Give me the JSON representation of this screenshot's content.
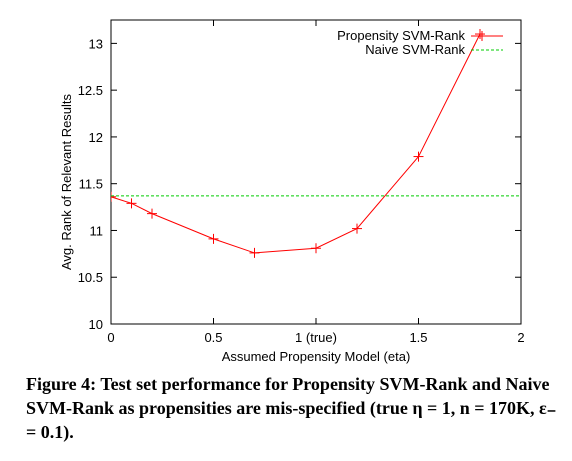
{
  "chart_data": {
    "type": "line",
    "xlabel": "Assumed Propensity Model (eta)",
    "ylabel": "Avg. Rank of Relevant Results",
    "xlim": [
      0,
      2
    ],
    "ylim": [
      10,
      13.25
    ],
    "x_ticks": [
      {
        "value": 0,
        "label": "0"
      },
      {
        "value": 0.5,
        "label": "0.5"
      },
      {
        "value": 1,
        "label": "1 (true)"
      },
      {
        "value": 1.5,
        "label": "1.5"
      },
      {
        "value": 2,
        "label": "2"
      }
    ],
    "y_ticks": [
      {
        "value": 10,
        "label": "10"
      },
      {
        "value": 10.5,
        "label": "10.5"
      },
      {
        "value": 11,
        "label": "11"
      },
      {
        "value": 11.5,
        "label": "11.5"
      },
      {
        "value": 12,
        "label": "12"
      },
      {
        "value": 12.5,
        "label": "12.5"
      },
      {
        "value": 13,
        "label": "13"
      }
    ],
    "grid": false,
    "legend_position": "top-right",
    "series": [
      {
        "name": "Propensity SVM-Rank",
        "color": "#ff0000",
        "style": "line+markers",
        "x": [
          0,
          0.1,
          0.2,
          0.5,
          0.7,
          1.0,
          1.2,
          1.5,
          1.8
        ],
        "y": [
          11.36,
          11.29,
          11.18,
          10.91,
          10.76,
          10.81,
          11.02,
          11.79,
          13.1
        ]
      },
      {
        "name": "Naive SVM-Rank",
        "color": "#00cc00",
        "style": "dashed-horizontal",
        "x": [
          0,
          2
        ],
        "y": [
          11.37,
          11.37
        ]
      }
    ]
  },
  "caption": "Figure 4: Test set performance for Propensity SVM-Rank and Naive SVM-Rank as propensities are mis-specified (true η = 1, n = 170K, ε₋ = 0.1)."
}
